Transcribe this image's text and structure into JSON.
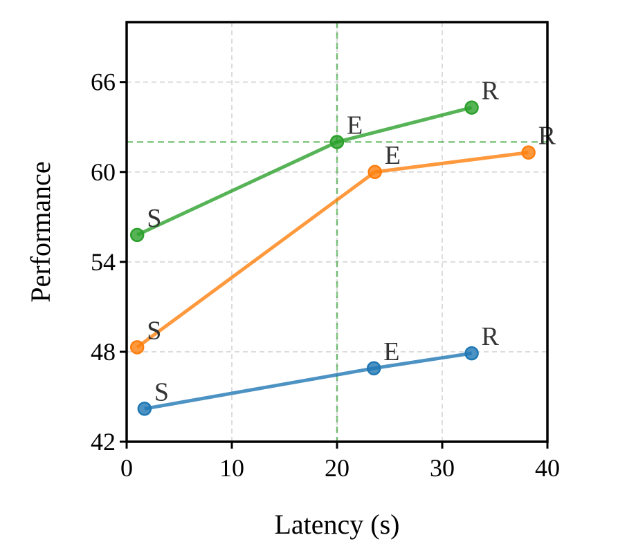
{
  "chart_data": {
    "type": "line",
    "xlabel": "Latency (s)",
    "ylabel": "Performance",
    "xlim": [
      0,
      40
    ],
    "ylim": [
      42,
      70
    ],
    "x_ticks": [
      0,
      10,
      20,
      30,
      40
    ],
    "y_ticks": [
      42,
      48,
      54,
      60,
      66
    ],
    "grid": true,
    "reference_lines": {
      "x": 20,
      "y": 62,
      "color": "#2ca02c"
    },
    "series": [
      {
        "color": "#2ca02c",
        "points": [
          {
            "x": 1.0,
            "y": 55.8,
            "label": "S"
          },
          {
            "x": 20.0,
            "y": 62.0,
            "label": "E"
          },
          {
            "x": 32.8,
            "y": 64.3,
            "label": "R"
          }
        ]
      },
      {
        "color": "#ff7f0e",
        "points": [
          {
            "x": 1.0,
            "y": 48.3,
            "label": "S"
          },
          {
            "x": 23.6,
            "y": 60.0,
            "label": "E"
          },
          {
            "x": 38.2,
            "y": 61.3,
            "label": "R"
          }
        ]
      },
      {
        "color": "#1f77b4",
        "points": [
          {
            "x": 1.7,
            "y": 44.2,
            "label": "S"
          },
          {
            "x": 23.5,
            "y": 46.9,
            "label": "E"
          },
          {
            "x": 32.8,
            "y": 47.9,
            "label": "R"
          }
        ]
      }
    ]
  }
}
